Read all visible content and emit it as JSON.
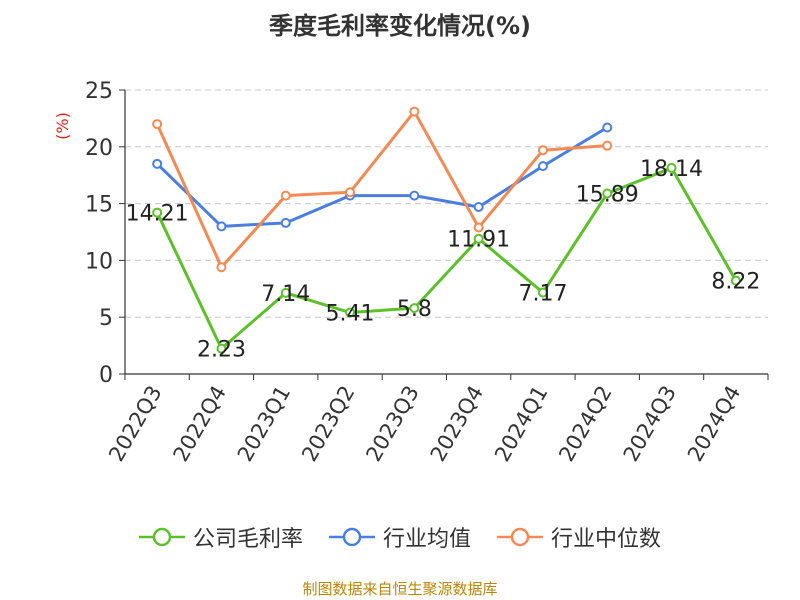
{
  "title": "季度毛利率变化情况(%)",
  "source_text": "制图数据来自恒生聚源数据库",
  "colors": {
    "series_company": "#5cc02a",
    "series_industry_avg": "#4a7fde",
    "series_industry_median": "#f28a55",
    "unit_label": "#e02020",
    "grid": "#c8c8c8",
    "axis": "#333333"
  },
  "chart_data": {
    "type": "line",
    "title": "季度毛利率变化情况(%)",
    "ylabel": "(%)",
    "xlabel": "",
    "ylim": [
      0,
      25
    ],
    "yticks": [
      0,
      5,
      10,
      15,
      20,
      25
    ],
    "grid": true,
    "legend_position": "bottom",
    "categories": [
      "2022Q3",
      "2022Q4",
      "2023Q1",
      "2023Q2",
      "2023Q3",
      "2023Q4",
      "2024Q1",
      "2024Q2",
      "2024Q3",
      "2024Q4"
    ],
    "series": [
      {
        "name": "公司毛利率",
        "color_key": "series_company",
        "values": [
          14.21,
          2.23,
          7.14,
          5.41,
          5.8,
          11.91,
          7.17,
          15.89,
          18.14,
          8.22
        ],
        "labels": [
          "14.21",
          "2.23",
          "7.14",
          "5.41",
          "5.8",
          "11.91",
          "7.17",
          "15.89",
          "18.14",
          "8.22"
        ]
      },
      {
        "name": "行业均值",
        "color_key": "series_industry_avg",
        "values": [
          18.5,
          13.0,
          13.3,
          15.7,
          15.7,
          14.7,
          18.3,
          21.7,
          null,
          null
        ]
      },
      {
        "name": "行业中位数",
        "color_key": "series_industry_median",
        "values": [
          22.0,
          9.4,
          15.7,
          16.0,
          23.1,
          12.9,
          19.7,
          20.1,
          null,
          null
        ]
      }
    ]
  }
}
